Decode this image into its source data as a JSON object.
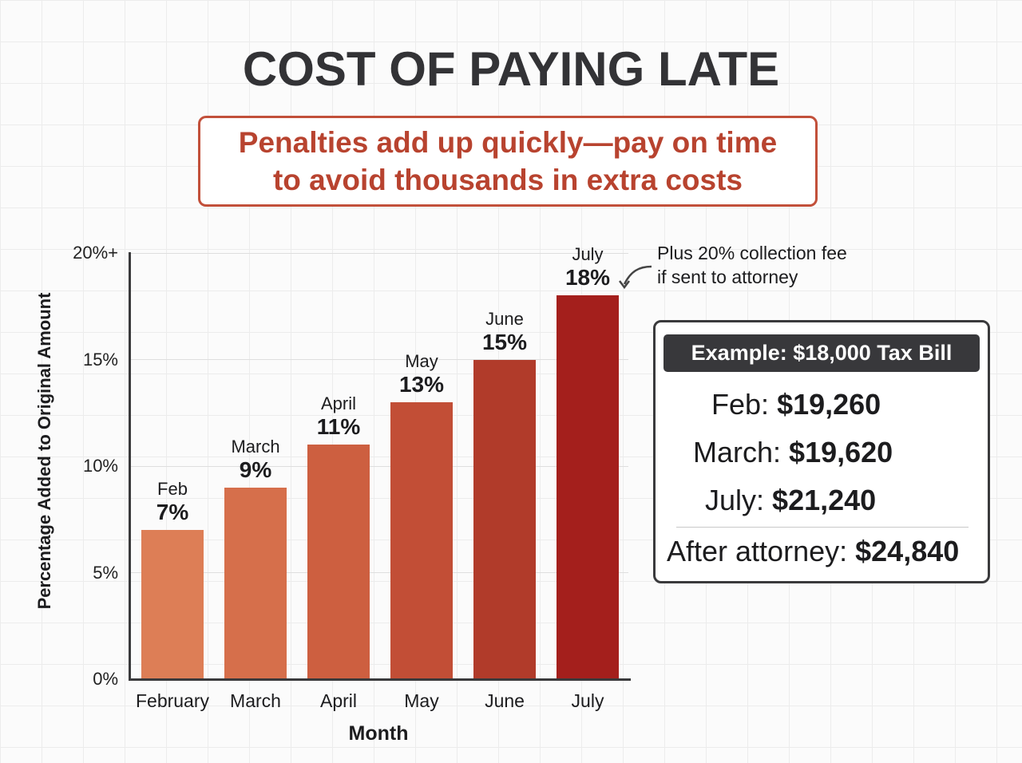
{
  "title": "COST OF PAYING LATE",
  "subtitle": {
    "line1": "Penalties add up quickly—pay on time",
    "line2": "to avoid thousands in extra costs"
  },
  "colors": {
    "subtitle_accent": "#b8432f",
    "bars": [
      "#dd7e56",
      "#d66f4b",
      "#cd5f40",
      "#c24e36",
      "#b13b2a",
      "#a41f1c"
    ],
    "header_dark": "#38383b"
  },
  "chart_data": {
    "type": "bar",
    "title": "COST OF PAYING LATE",
    "subtitle": "Penalties add up quickly—pay on time to avoid thousands in extra costs",
    "xlabel": "Month",
    "ylabel": "Percentage Added to Original Amount",
    "categories": [
      "February",
      "March",
      "April",
      "May",
      "June",
      "July"
    ],
    "short_labels": [
      "Feb",
      "March",
      "April",
      "May",
      "June",
      "July"
    ],
    "values": [
      7,
      9,
      11,
      13,
      15,
      18
    ],
    "value_labels": [
      "7%",
      "9%",
      "11%",
      "13%",
      "15%",
      "18%"
    ],
    "yticks": [
      "0%",
      "5%",
      "10%",
      "15%",
      "20%+"
    ],
    "ylim": [
      0,
      20
    ],
    "grid": true,
    "annotations": [
      {
        "target": "July",
        "text": "Plus 20% collection fee if sent to attorney"
      }
    ],
    "example_box": {
      "header": "Example: $18,000 Tax Bill",
      "rows": [
        {
          "label": "Feb:",
          "value": "$19,260"
        },
        {
          "label": "March:",
          "value": "$19,620"
        },
        {
          "label": "July:",
          "value": "$21,240"
        },
        {
          "label": "After attorney:",
          "value": "$24,840"
        }
      ]
    }
  },
  "annotation": {
    "line1": "Plus 20% collection fee",
    "line2": "if sent to attorney"
  }
}
